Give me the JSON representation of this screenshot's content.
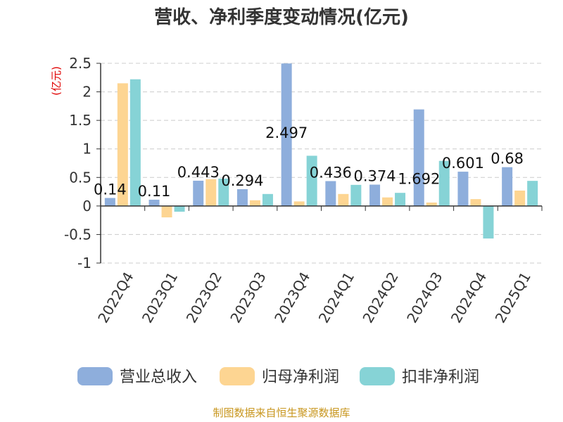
{
  "chart_data": {
    "type": "bar",
    "title": "营收、净利季度变动情况(亿元)",
    "ylabel": "(亿元)",
    "xlabel": "",
    "categories": [
      "2022Q4",
      "2023Q1",
      "2023Q2",
      "2023Q3",
      "2023Q4",
      "2024Q1",
      "2024Q2",
      "2024Q3",
      "2024Q4",
      "2025Q1"
    ],
    "ylim": [
      -1,
      2.5
    ],
    "yticks": [
      2.5,
      2,
      1.5,
      1,
      0.5,
      0,
      -0.5,
      -1
    ],
    "grid": true,
    "legend_position": "bottom",
    "series": [
      {
        "name": "营业总收入",
        "color": "#8eaedc",
        "values": [
          0.14,
          0.11,
          0.443,
          0.294,
          2.497,
          0.436,
          0.374,
          1.692,
          0.601,
          0.68
        ]
      },
      {
        "name": "归母净利润",
        "color": "#fdd592",
        "values": [
          2.15,
          -0.2,
          0.47,
          0.1,
          0.08,
          0.21,
          0.15,
          0.06,
          0.12,
          0.27
        ]
      },
      {
        "name": "扣非净利润",
        "color": "#86d3d6",
        "values": [
          2.22,
          -0.1,
          0.48,
          0.21,
          0.88,
          0.37,
          0.23,
          0.79,
          -0.57,
          0.44
        ]
      }
    ],
    "data_labels": [
      "0.14",
      "0.11",
      "0.443",
      "0.294",
      "2.497",
      "0.436",
      "0.374",
      "1.692",
      "0.601",
      "0.68"
    ]
  },
  "source": "制图数据来自恒生聚源数据库"
}
